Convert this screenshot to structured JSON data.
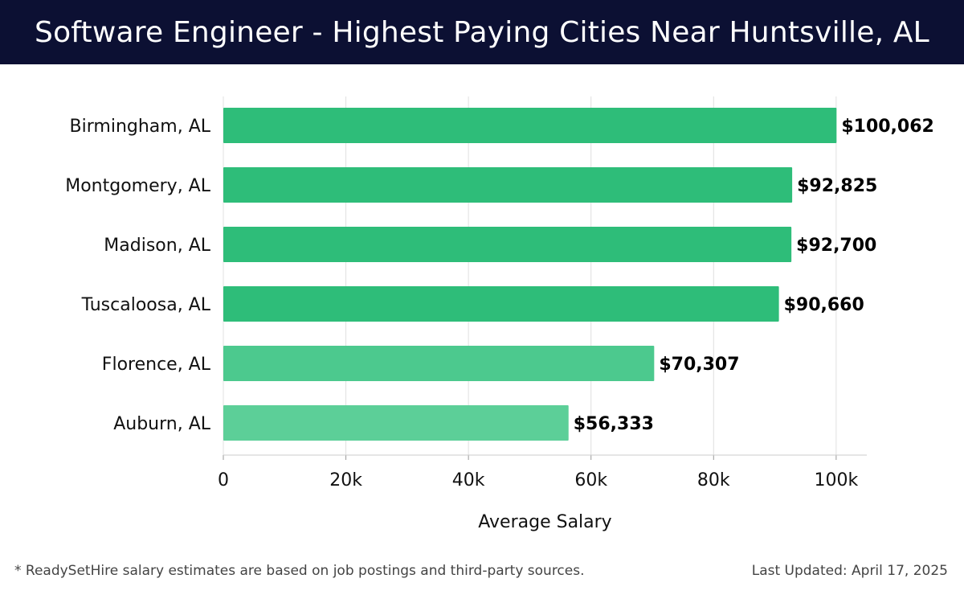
{
  "header": {
    "title": "Software Engineer - Highest Paying Cities Near Huntsville, AL"
  },
  "chart_data": {
    "type": "bar",
    "orientation": "horizontal",
    "title": "Software Engineer - Highest Paying Cities Near Huntsville, AL",
    "categories": [
      "Birmingham, AL",
      "Montgomery, AL",
      "Madison, AL",
      "Tuscaloosa, AL",
      "Florence, AL",
      "Auburn, AL"
    ],
    "values": [
      100062,
      92825,
      92700,
      90660,
      70307,
      56333
    ],
    "value_labels": [
      "$100,062",
      "$92,825",
      "$92,700",
      "$90,660",
      "$70,307",
      "$56,333"
    ],
    "bar_colors": [
      "#2ebd79",
      "#2ebd79",
      "#2ebd79",
      "#2ebd79",
      "#4cc98e",
      "#5ccf98"
    ],
    "xlabel": "Average Salary",
    "ylabel": "",
    "xlim": [
      0,
      105000
    ],
    "x_ticks": [
      0,
      20000,
      40000,
      60000,
      80000,
      100000
    ],
    "x_tick_labels": [
      "0",
      "20k",
      "40k",
      "60k",
      "80k",
      "100k"
    ],
    "grid": true,
    "legend": "none"
  },
  "footer": {
    "note": "* ReadySetHire salary estimates are based on job postings and third-party sources.",
    "updated": "Last Updated: April 17, 2025"
  },
  "colors": {
    "header_bg": "#0c1033",
    "bar": "#2ebd79",
    "grid": "#e0e0e0"
  }
}
